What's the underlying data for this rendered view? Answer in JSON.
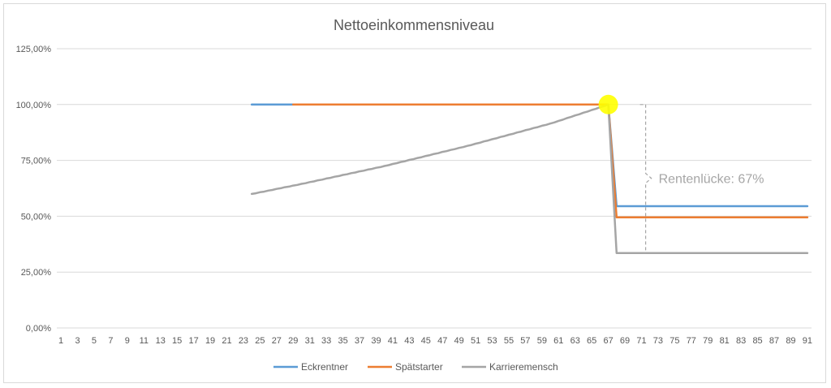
{
  "chart_data": {
    "type": "line",
    "title": "Nettoeinkommensniveau",
    "xlabel": "",
    "ylabel": "",
    "x": [
      1,
      2,
      3,
      4,
      5,
      6,
      7,
      8,
      9,
      10,
      11,
      12,
      13,
      14,
      15,
      16,
      17,
      18,
      19,
      20,
      21,
      22,
      23,
      24,
      25,
      26,
      27,
      28,
      29,
      30,
      31,
      32,
      33,
      34,
      35,
      36,
      37,
      38,
      39,
      40,
      41,
      42,
      43,
      44,
      45,
      46,
      47,
      48,
      49,
      50,
      51,
      52,
      53,
      54,
      55,
      56,
      57,
      58,
      59,
      60,
      61,
      62,
      63,
      64,
      65,
      66,
      67,
      68,
      69,
      70,
      71,
      72,
      73,
      74,
      75,
      76,
      77,
      78,
      79,
      80,
      81,
      82,
      83,
      84,
      85,
      86,
      87,
      88,
      89,
      90,
      91
    ],
    "x_tick_labels": [
      "1",
      "3",
      "5",
      "7",
      "9",
      "11",
      "13",
      "15",
      "17",
      "19",
      "21",
      "23",
      "25",
      "27",
      "29",
      "31",
      "33",
      "35",
      "37",
      "39",
      "41",
      "43",
      "45",
      "47",
      "49",
      "51",
      "53",
      "55",
      "57",
      "59",
      "61",
      "63",
      "65",
      "67",
      "69",
      "71",
      "73",
      "75",
      "77",
      "79",
      "81",
      "83",
      "85",
      "87",
      "89",
      "91"
    ],
    "ylim": [
      0,
      1.25
    ],
    "y_ticks": [
      0,
      0.25,
      0.5,
      0.75,
      1.0,
      1.25
    ],
    "y_tick_labels": [
      "0,00%",
      "25,00%",
      "50,00%",
      "75,00%",
      "100,00%",
      "125,00%"
    ],
    "grid": "horizontal",
    "legend_position": "bottom",
    "series": [
      {
        "name": "Eckrentner",
        "color": "#5b9bd5",
        "points": [
          [
            24,
            1.0
          ],
          [
            67,
            1.0
          ],
          [
            68,
            0.545
          ],
          [
            91,
            0.545
          ]
        ]
      },
      {
        "name": "Spätstarter",
        "color": "#ed7d31",
        "points": [
          [
            29,
            1.0
          ],
          [
            67,
            1.0
          ],
          [
            68,
            0.495
          ],
          [
            91,
            0.495
          ]
        ]
      },
      {
        "name": "Karrieremensch",
        "color": "#a5a5a5",
        "points": [
          [
            24,
            0.6
          ],
          [
            30,
            0.645
          ],
          [
            40,
            0.725
          ],
          [
            50,
            0.815
          ],
          [
            60,
            0.915
          ],
          [
            67,
            1.0
          ],
          [
            68,
            0.335
          ],
          [
            91,
            0.335
          ]
        ]
      }
    ],
    "annotations": [
      {
        "text": "Rentenlücke: 67%",
        "x": 71.5,
        "y": 0.67,
        "from_y": 1.0,
        "to_y": 0.335
      },
      {
        "type": "highlight-marker",
        "x": 67,
        "y": 1.0,
        "color": "#ffff00"
      }
    ]
  }
}
